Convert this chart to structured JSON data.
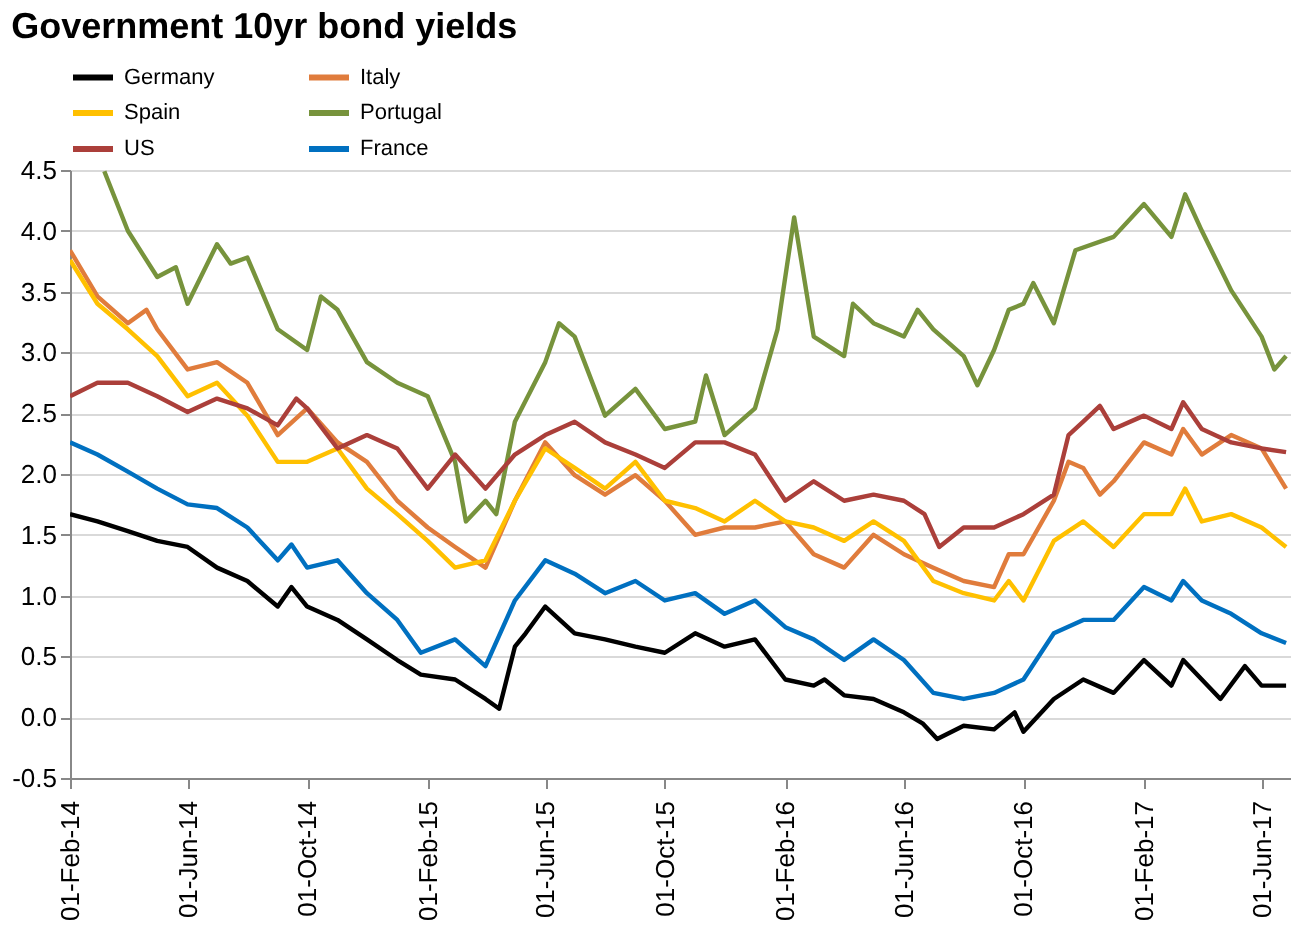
{
  "chart_data": {
    "type": "line",
    "title": "Government 10yr bond yields",
    "xlim": [
      "2014-02-01",
      "2017-06-30"
    ],
    "xticks": [
      {
        "value": "2014-02-01",
        "label": "01-Feb-14"
      },
      {
        "value": "2014-06-01",
        "label": "01-Jun-14"
      },
      {
        "value": "2014-10-01",
        "label": "01-Oct-14"
      },
      {
        "value": "2015-02-01",
        "label": "01-Feb-15"
      },
      {
        "value": "2015-06-01",
        "label": "01-Jun-15"
      },
      {
        "value": "2015-10-01",
        "label": "01-Oct-15"
      },
      {
        "value": "2016-02-01",
        "label": "01-Feb-16"
      },
      {
        "value": "2016-06-01",
        "label": "01-Jun-16"
      },
      {
        "value": "2016-10-01",
        "label": "01-Oct-16"
      },
      {
        "value": "2017-02-01",
        "label": "01-Feb-17"
      },
      {
        "value": "2017-06-01",
        "label": "01-Jun-17"
      }
    ],
    "ylim": [
      -0.5,
      4.5
    ],
    "yticks": [
      -0.5,
      {
        "value": 0,
        "label": "0.0"
      },
      0.5,
      {
        "value": 1,
        "label": "1.0"
      },
      1.5,
      {
        "value": 2,
        "label": "2.0"
      },
      2.5,
      {
        "value": 3,
        "label": "3.0"
      },
      3.5,
      {
        "value": 4,
        "label": "4.0"
      },
      4.5
    ],
    "grid": "y",
    "legend": "top",
    "line_style": "solid",
    "marker": "none",
    "series": [
      {
        "name": "Germany",
        "color": "#000000",
        "x": [
          "2014-02-01",
          "2014-03-01",
          "2014-04-01",
          "2014-05-01",
          "2014-06-01",
          "2014-07-01",
          "2014-08-01",
          "2014-09-01",
          "2014-09-15",
          "2014-10-01",
          "2014-11-01",
          "2014-12-01",
          "2015-01-01",
          "2015-01-25",
          "2015-03-01",
          "2015-04-01",
          "2015-04-15",
          "2015-05-01",
          "2015-05-12",
          "2015-06-01",
          "2015-07-01",
          "2015-08-01",
          "2015-09-01",
          "2015-10-01",
          "2015-11-01",
          "2015-12-01",
          "2016-01-01",
          "2016-02-01",
          "2016-03-01",
          "2016-03-12",
          "2016-04-01",
          "2016-05-01",
          "2016-06-01",
          "2016-06-20",
          "2016-07-05",
          "2016-08-01",
          "2016-09-01",
          "2016-09-22",
          "2016-10-01",
          "2016-11-01",
          "2016-12-01",
          "2017-01-01",
          "2017-02-01",
          "2017-03-01",
          "2017-03-13",
          "2017-04-01",
          "2017-04-20",
          "2017-05-15",
          "2017-06-01",
          "2017-06-26"
        ],
        "values": [
          1.67,
          1.61,
          1.53,
          1.45,
          1.4,
          1.23,
          1.12,
          0.91,
          1.07,
          0.91,
          0.8,
          0.64,
          0.47,
          0.35,
          0.31,
          0.15,
          0.07,
          0.58,
          0.69,
          0.91,
          0.69,
          0.64,
          0.58,
          0.53,
          0.69,
          0.58,
          0.64,
          0.31,
          0.26,
          0.31,
          0.18,
          0.15,
          0.04,
          -0.05,
          -0.18,
          -0.07,
          -0.1,
          0.04,
          -0.12,
          0.15,
          0.31,
          0.2,
          0.47,
          0.26,
          0.47,
          0.31,
          0.15,
          0.42,
          0.26,
          0.26
        ]
      },
      {
        "name": "Italy",
        "color": "#e07c3c",
        "x": [
          "2014-02-01",
          "2014-03-01",
          "2014-04-01",
          "2014-04-20",
          "2014-05-01",
          "2014-06-01",
          "2014-07-01",
          "2014-08-01",
          "2014-09-01",
          "2014-10-01",
          "2014-11-01",
          "2014-12-01",
          "2015-01-01",
          "2015-02-01",
          "2015-03-01",
          "2015-04-01",
          "2015-05-01",
          "2015-06-01",
          "2015-07-01",
          "2015-08-01",
          "2015-09-01",
          "2015-10-01",
          "2015-11-01",
          "2015-12-01",
          "2016-01-01",
          "2016-02-01",
          "2016-03-01",
          "2016-04-01",
          "2016-05-01",
          "2016-06-01",
          "2016-07-01",
          "2016-08-01",
          "2016-09-01",
          "2016-09-16",
          "2016-10-01",
          "2016-11-01",
          "2016-11-16",
          "2016-12-01",
          "2016-12-18",
          "2017-01-01",
          "2017-02-01",
          "2017-03-01",
          "2017-03-13",
          "2017-04-01",
          "2017-05-01",
          "2017-06-01",
          "2017-06-26"
        ],
        "values": [
          3.84,
          3.46,
          3.24,
          3.35,
          3.19,
          2.86,
          2.92,
          2.75,
          2.32,
          2.54,
          2.26,
          2.1,
          1.78,
          1.56,
          1.4,
          1.23,
          1.78,
          2.26,
          1.99,
          1.83,
          1.99,
          1.78,
          1.5,
          1.56,
          1.56,
          1.61,
          1.34,
          1.23,
          1.5,
          1.34,
          1.23,
          1.12,
          1.07,
          1.34,
          1.34,
          1.78,
          2.1,
          2.05,
          1.83,
          1.94,
          2.26,
          2.16,
          2.37,
          2.16,
          2.32,
          2.21,
          1.88
        ]
      },
      {
        "name": "Spain",
        "color": "#ffc000",
        "x": [
          "2014-02-01",
          "2014-03-01",
          "2014-04-01",
          "2014-05-01",
          "2014-06-01",
          "2014-07-01",
          "2014-08-01",
          "2014-09-01",
          "2014-10-01",
          "2014-11-01",
          "2014-12-01",
          "2015-01-01",
          "2015-02-01",
          "2015-03-01",
          "2015-04-01",
          "2015-05-01",
          "2015-06-01",
          "2015-07-01",
          "2015-08-01",
          "2015-09-01",
          "2015-10-01",
          "2015-11-01",
          "2015-12-01",
          "2016-01-01",
          "2016-02-01",
          "2016-03-01",
          "2016-04-01",
          "2016-05-01",
          "2016-06-01",
          "2016-07-01",
          "2016-08-01",
          "2016-09-01",
          "2016-09-16",
          "2016-10-01",
          "2016-11-01",
          "2016-12-01",
          "2017-01-01",
          "2017-02-01",
          "2017-03-01",
          "2017-03-15",
          "2017-04-01",
          "2017-05-01",
          "2017-06-01",
          "2017-06-26"
        ],
        "values": [
          3.76,
          3.4,
          3.19,
          2.97,
          2.64,
          2.75,
          2.48,
          2.1,
          2.1,
          2.21,
          1.88,
          1.67,
          1.45,
          1.23,
          1.29,
          1.78,
          2.21,
          2.05,
          1.88,
          2.1,
          1.78,
          1.72,
          1.61,
          1.78,
          1.61,
          1.56,
          1.45,
          1.61,
          1.45,
          1.12,
          1.02,
          0.96,
          1.12,
          0.96,
          1.45,
          1.61,
          1.4,
          1.67,
          1.67,
          1.88,
          1.61,
          1.67,
          1.56,
          1.4
        ]
      },
      {
        "name": "Portugal",
        "color": "#77933c",
        "x": [
          "2014-03-08",
          "2014-04-01",
          "2014-05-01",
          "2014-05-20",
          "2014-06-01",
          "2014-07-01",
          "2014-07-15",
          "2014-08-01",
          "2014-09-01",
          "2014-10-01",
          "2014-10-15",
          "2014-11-01",
          "2014-12-01",
          "2015-01-01",
          "2015-02-01",
          "2015-03-01",
          "2015-03-12",
          "2015-04-01",
          "2015-04-12",
          "2015-05-01",
          "2015-06-01",
          "2015-06-15",
          "2015-07-01",
          "2015-08-01",
          "2015-09-01",
          "2015-10-01",
          "2015-11-01",
          "2015-11-12",
          "2015-12-01",
          "2016-01-01",
          "2016-01-24",
          "2016-02-10",
          "2016-03-01",
          "2016-04-01",
          "2016-04-10",
          "2016-05-01",
          "2016-06-01",
          "2016-06-15",
          "2016-07-01",
          "2016-08-01",
          "2016-08-15",
          "2016-09-01",
          "2016-09-16",
          "2016-10-01",
          "2016-10-11",
          "2016-11-01",
          "2016-11-23",
          "2017-01-01",
          "2017-02-01",
          "2017-03-01",
          "2017-03-15",
          "2017-04-01",
          "2017-05-01",
          "2017-06-01",
          "2017-06-14",
          "2017-06-26"
        ],
        "values": [
          4.49,
          4.0,
          3.62,
          3.7,
          3.4,
          3.89,
          3.73,
          3.78,
          3.19,
          3.02,
          3.46,
          3.35,
          2.92,
          2.75,
          2.64,
          2.1,
          1.61,
          1.78,
          1.67,
          2.43,
          2.92,
          3.24,
          3.13,
          2.48,
          2.7,
          2.37,
          2.43,
          2.81,
          2.32,
          2.54,
          3.19,
          4.11,
          3.13,
          2.97,
          3.4,
          3.24,
          3.13,
          3.35,
          3.19,
          2.97,
          2.73,
          3.02,
          3.35,
          3.4,
          3.57,
          3.24,
          3.84,
          3.95,
          4.22,
          3.95,
          4.3,
          4.0,
          3.51,
          3.13,
          2.86,
          2.97
        ]
      },
      {
        "name": "US",
        "color": "#ab3f3a",
        "x": [
          "2014-02-01",
          "2014-03-01",
          "2014-04-01",
          "2014-05-01",
          "2014-06-01",
          "2014-07-01",
          "2014-08-01",
          "2014-09-01",
          "2014-09-20",
          "2014-10-01",
          "2014-11-01",
          "2014-12-01",
          "2015-01-01",
          "2015-02-01",
          "2015-03-01",
          "2015-04-01",
          "2015-05-01",
          "2015-06-01",
          "2015-07-01",
          "2015-08-01",
          "2015-09-01",
          "2015-10-01",
          "2015-11-01",
          "2015-12-01",
          "2016-01-01",
          "2016-02-01",
          "2016-03-01",
          "2016-04-01",
          "2016-05-01",
          "2016-06-01",
          "2016-06-22",
          "2016-07-07",
          "2016-08-01",
          "2016-09-01",
          "2016-10-01",
          "2016-11-01",
          "2016-11-16",
          "2016-12-01",
          "2016-12-18",
          "2017-01-01",
          "2017-02-01",
          "2017-03-01",
          "2017-03-13",
          "2017-04-01",
          "2017-05-01",
          "2017-06-01",
          "2017-06-26"
        ],
        "values": [
          2.64,
          2.75,
          2.75,
          2.64,
          2.51,
          2.62,
          2.54,
          2.4,
          2.62,
          2.54,
          2.21,
          2.32,
          2.21,
          1.88,
          2.16,
          1.88,
          2.16,
          2.32,
          2.43,
          2.26,
          2.16,
          2.05,
          2.26,
          2.26,
          2.16,
          1.78,
          1.94,
          1.78,
          1.83,
          1.78,
          1.67,
          1.4,
          1.56,
          1.56,
          1.67,
          1.83,
          2.32,
          2.43,
          2.56,
          2.37,
          2.48,
          2.37,
          2.59,
          2.37,
          2.26,
          2.21,
          2.18
        ]
      },
      {
        "name": "France",
        "color": "#0070c0",
        "x": [
          "2014-02-01",
          "2014-03-01",
          "2014-04-01",
          "2014-05-01",
          "2014-06-01",
          "2014-07-01",
          "2014-08-01",
          "2014-09-01",
          "2014-09-15",
          "2014-10-01",
          "2014-11-01",
          "2014-12-01",
          "2015-01-01",
          "2015-01-25",
          "2015-03-01",
          "2015-04-01",
          "2015-05-01",
          "2015-06-01",
          "2015-07-01",
          "2015-08-01",
          "2015-09-01",
          "2015-10-01",
          "2015-11-01",
          "2015-12-01",
          "2016-01-01",
          "2016-02-01",
          "2016-03-01",
          "2016-04-01",
          "2016-05-01",
          "2016-06-01",
          "2016-07-01",
          "2016-08-01",
          "2016-09-01",
          "2016-10-01",
          "2016-11-01",
          "2016-12-01",
          "2017-01-01",
          "2017-02-01",
          "2017-03-01",
          "2017-03-13",
          "2017-04-01",
          "2017-05-01",
          "2017-06-01",
          "2017-06-26"
        ],
        "values": [
          2.26,
          2.16,
          2.02,
          1.88,
          1.75,
          1.72,
          1.56,
          1.29,
          1.42,
          1.23,
          1.29,
          1.02,
          0.8,
          0.53,
          0.64,
          0.42,
          0.96,
          1.29,
          1.18,
          1.02,
          1.12,
          0.96,
          1.02,
          0.85,
          0.96,
          0.74,
          0.64,
          0.47,
          0.64,
          0.47,
          0.2,
          0.15,
          0.2,
          0.31,
          0.69,
          0.8,
          0.8,
          1.07,
          0.96,
          1.12,
          0.96,
          0.85,
          0.69,
          0.61
        ]
      }
    ]
  }
}
